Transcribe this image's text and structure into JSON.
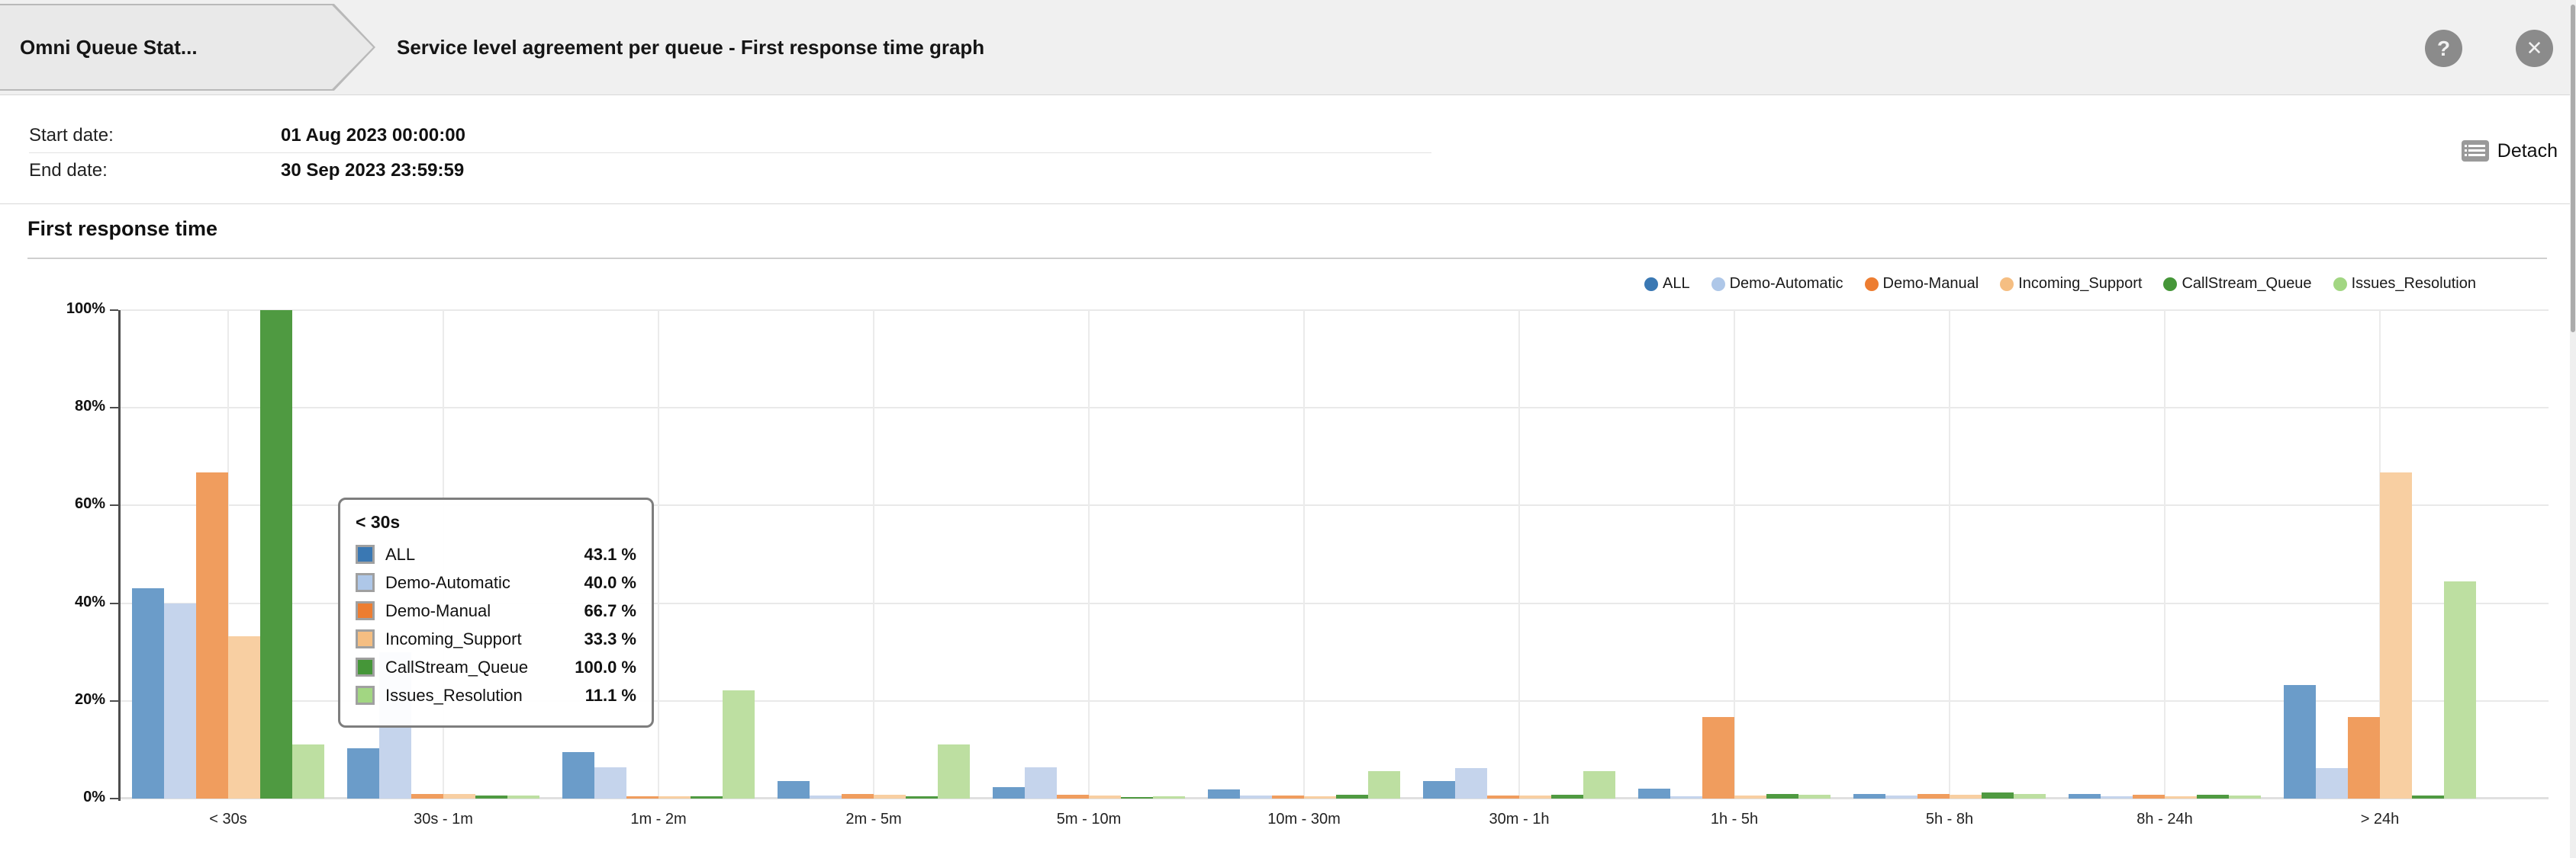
{
  "header": {
    "breadcrumb": "Omni Queue Stat...",
    "title": "Service level agreement per queue - First response time graph",
    "help_glyph": "?",
    "close_glyph": "✕"
  },
  "filters": {
    "start_label": "Start date:",
    "start_value": "01 Aug 2023 00:00:00",
    "end_label": "End date:",
    "end_value": "30 Sep 2023 23:59:59",
    "detach_label": "Detach"
  },
  "section_title": "First response time",
  "chart_data": {
    "type": "bar",
    "title": "First response time",
    "categories": [
      "< 30s",
      "30s - 1m",
      "1m - 2m",
      "2m - 5m",
      "5m - 10m",
      "10m - 30m",
      "30m - 1h",
      "1h - 5h",
      "5h - 8h",
      "8h - 24h",
      "> 24h"
    ],
    "series": [
      {
        "name": "ALL",
        "marker_color": "#3a78b3",
        "bar_color": "#6b9cc9",
        "values": [
          43.1,
          10.3,
          9.5,
          3.6,
          2.3,
          1.8,
          3.6,
          2.1,
          1.0,
          0.9,
          23.3
        ]
      },
      {
        "name": "Demo-Automatic",
        "marker_color": "#aec7e8",
        "bar_color": "#c5d4ec",
        "values": [
          40.0,
          30.0,
          6.4,
          0.7,
          6.4,
          0.6,
          6.2,
          0.5,
          0.6,
          0.5,
          6.2
        ]
      },
      {
        "name": "Demo-Manual",
        "marker_color": "#ed7d31",
        "bar_color": "#f09d5e",
        "values": [
          66.7,
          1.0,
          0.5,
          0.9,
          0.8,
          0.7,
          0.7,
          16.7,
          1.0,
          0.8,
          16.7
        ]
      },
      {
        "name": "Incoming_Support",
        "marker_color": "#f5be82",
        "bar_color": "#f8cfa2",
        "values": [
          33.3,
          1.0,
          0.4,
          0.8,
          0.7,
          0.5,
          0.6,
          0.7,
          0.8,
          0.5,
          66.7
        ]
      },
      {
        "name": "CallStream_Queue",
        "marker_color": "#459638",
        "bar_color": "#4f9a41",
        "values": [
          100.0,
          0.6,
          0.5,
          0.5,
          0.3,
          0.8,
          0.8,
          1.0,
          1.2,
          0.8,
          0.7
        ]
      },
      {
        "name": "Issues_Resolution",
        "marker_color": "#a2d682",
        "bar_color": "#bddfa1",
        "values": [
          11.1,
          0.7,
          22.2,
          11.1,
          0.5,
          5.6,
          5.6,
          0.8,
          0.9,
          0.7,
          44.4
        ]
      }
    ],
    "xlabel": "",
    "ylabel": "",
    "ylim": [
      0,
      100
    ],
    "yticks": [
      "0%",
      "20%",
      "40%",
      "60%",
      "80%",
      "100%"
    ],
    "grid": true,
    "legend_position": "top-right"
  },
  "tooltip": {
    "title": "< 30s",
    "rows": [
      {
        "label": "ALL",
        "value": "43.1 %"
      },
      {
        "label": "Demo-Automatic",
        "value": "40.0 %"
      },
      {
        "label": "Demo-Manual",
        "value": "66.7 %"
      },
      {
        "label": "Incoming_Support",
        "value": "33.3 %"
      },
      {
        "label": "CallStream_Queue",
        "value": "100.0 %"
      },
      {
        "label": "Issues_Resolution",
        "value": "11.1 %"
      }
    ]
  }
}
